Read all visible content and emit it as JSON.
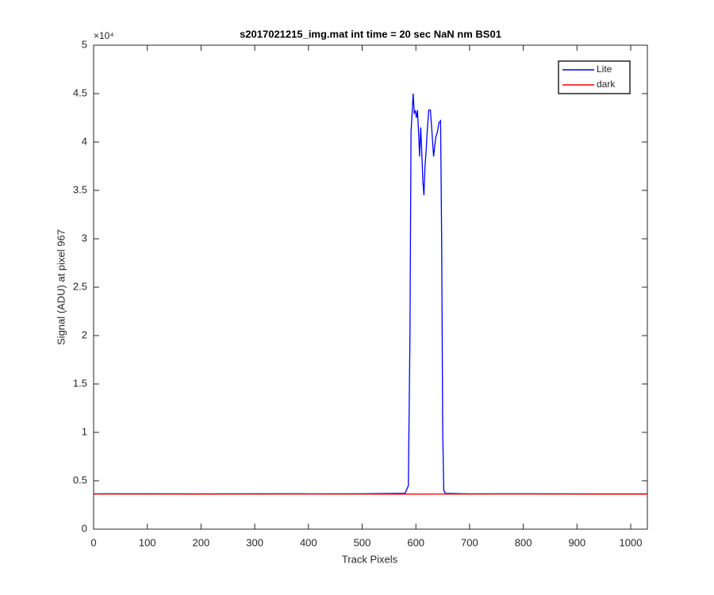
{
  "chart_data": {
    "type": "line",
    "title": "s2017021215_img.mat int time = 20 sec  NaN nm BS01",
    "x_label": "Track Pixels",
    "y_label": "Signal (ADU) at pixel 967",
    "y_multiplier": "×10⁴",
    "xlim": [
      0,
      1031
    ],
    "xticks": [
      0,
      100,
      200,
      300,
      400,
      500,
      600,
      700,
      800,
      900,
      1000
    ],
    "ylim": [
      0,
      5
    ],
    "yticks": [
      0,
      0.5,
      1,
      1.5,
      2,
      2.5,
      3,
      3.5,
      4,
      4.5,
      5
    ],
    "legend": "top-right",
    "series": [
      {
        "name": "Lite",
        "color": "#0000ff",
        "x": [
          0,
          100,
          200,
          300,
          400,
          500,
          580,
          586,
          589,
          591,
          593,
          595,
          597,
          599,
          601,
          603,
          605,
          607,
          609,
          611,
          613,
          615,
          617,
          619,
          621,
          624,
          627,
          630,
          633,
          635,
          637,
          640,
          643,
          646,
          648,
          650,
          652,
          655,
          700,
          800,
          900,
          1031
        ],
        "values": [
          0.365,
          0.366,
          0.365,
          0.366,
          0.365,
          0.366,
          0.37,
          0.45,
          2.0,
          4.1,
          4.3,
          4.5,
          4.3,
          4.32,
          4.25,
          4.33,
          4.1,
          3.85,
          4.15,
          3.9,
          3.6,
          3.45,
          3.75,
          3.9,
          4.1,
          4.33,
          4.33,
          4.1,
          3.85,
          3.95,
          4.05,
          4.1,
          4.2,
          4.22,
          3.0,
          1.0,
          0.4,
          0.37,
          0.365,
          0.366,
          0.365,
          0.365
        ]
      },
      {
        "name": "dark",
        "color": "#ff0000",
        "x": [
          0,
          200,
          400,
          600,
          800,
          1031
        ],
        "values": [
          0.363,
          0.362,
          0.363,
          0.362,
          0.363,
          0.362
        ]
      }
    ]
  }
}
